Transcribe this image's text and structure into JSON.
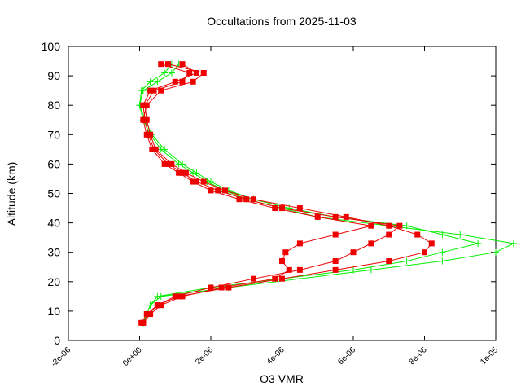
{
  "chart_data": {
    "type": "scatter",
    "title": "Occultations from 2025-11-03",
    "x_label": "O3 VMR",
    "y_label": "Altitude (km)",
    "xlim": [
      -2e-06,
      1e-05
    ],
    "xticks": [
      {
        "value": -2e-06,
        "label": "-2e-06"
      },
      {
        "value": 0,
        "label": "0e+00"
      },
      {
        "value": 2e-06,
        "label": "2e-06"
      },
      {
        "value": 4e-06,
        "label": "4e-06"
      },
      {
        "value": 6e-06,
        "label": "6e-06"
      },
      {
        "value": 8e-06,
        "label": "8e-06"
      },
      {
        "value": 1e-05,
        "label": "1e-05"
      }
    ],
    "ylim": [
      0,
      100
    ],
    "yticks": [
      0,
      10,
      20,
      30,
      40,
      50,
      60,
      70,
      80,
      90,
      100
    ],
    "series": [
      {
        "color": "#00ee00",
        "marker": "plus",
        "x": [
          1e-07,
          2e-07,
          3e-07,
          6e-07,
          2.5e-06,
          4.5e-06,
          6.5e-06,
          8.5e-06,
          1e-05,
          1.05e-05,
          9e-06,
          7e-06,
          5e-06,
          4e-06,
          3e-06,
          2.4e-06,
          1.9e-06,
          1.5e-06,
          1.1e-06,
          6e-07,
          3e-07,
          1e-07,
          0.0,
          1e-07,
          5e-07,
          9e-07,
          1.1e-06
        ],
        "values": [
          6,
          9,
          12,
          15,
          18,
          21,
          24,
          27,
          30,
          33,
          36,
          39,
          42,
          45,
          48,
          51,
          54,
          57,
          60,
          65,
          70,
          75,
          80,
          85,
          88,
          91,
          94
        ]
      },
      {
        "color": "#00ee00",
        "marker": "plus",
        "x": [
          1e-07,
          2e-07,
          3e-07,
          5e-07,
          2e-06,
          4e-06,
          6e-06,
          7.5e-06,
          8.5e-06,
          9.5e-06,
          8.5e-06,
          7.5e-06,
          5.5e-06,
          4.2e-06,
          3.2e-06,
          2.5e-06,
          2e-06,
          1.6e-06,
          1.2e-06,
          7e-07,
          3.5e-07,
          1.5e-07,
          0.0,
          5e-08,
          3e-07,
          7e-07,
          9e-07
        ],
        "values": [
          6,
          9,
          12,
          15,
          18,
          21,
          24,
          27,
          30,
          33,
          36,
          39,
          42,
          45,
          48,
          51,
          54,
          57,
          60,
          65,
          70,
          75,
          80,
          85,
          88,
          91,
          94
        ]
      },
      {
        "color": "#ee0000",
        "marker": "square",
        "x": [
          5e-08,
          2e-07,
          5e-07,
          1e-06,
          2e-06,
          3.2e-06,
          4.5e-06,
          5.5e-06,
          6e-06,
          6.5e-06,
          7e-06,
          7.3e-06,
          5.5e-06,
          4e-06,
          3e-06,
          2.2e-06,
          1.6e-06,
          1.2e-06,
          8e-07,
          4e-07,
          2.5e-07,
          1.5e-07,
          1e-07,
          3e-07,
          1e-06,
          1.6e-06,
          1.2e-06
        ],
        "values": [
          6,
          9,
          12,
          15,
          18,
          21,
          24,
          27,
          30,
          33,
          36,
          39,
          42,
          45,
          48,
          51,
          54,
          57,
          60,
          65,
          70,
          75,
          80,
          85,
          88,
          91,
          94
        ]
      },
      {
        "color": "#ee0000",
        "marker": "square",
        "x": [
          1e-07,
          3e-07,
          6e-07,
          1.2e-06,
          2.3e-06,
          3.8e-06,
          4.2e-06,
          4e-06,
          4.1e-06,
          4.5e-06,
          5.5e-06,
          6.5e-06,
          5e-06,
          3.8e-06,
          2.8e-06,
          2e-06,
          1.5e-06,
          1.1e-06,
          7e-07,
          3.5e-07,
          2e-07,
          1e-07,
          2e-07,
          6e-07,
          1.5e-06,
          1.8e-06,
          8e-07
        ],
        "values": [
          6,
          9,
          12,
          15,
          18,
          21,
          24,
          27,
          30,
          33,
          36,
          39,
          42,
          45,
          48,
          51,
          54,
          57,
          60,
          65,
          70,
          75,
          80,
          85,
          88,
          91,
          94
        ]
      },
      {
        "color": "#ee0000",
        "marker": "square",
        "x": [
          1e-07,
          2.5e-07,
          5e-07,
          1.1e-06,
          2.5e-06,
          4e-06,
          5.5e-06,
          7e-06,
          8e-06,
          8.2e-06,
          7.8e-06,
          7e-06,
          5.8e-06,
          4.5e-06,
          3.2e-06,
          2.4e-06,
          1.8e-06,
          1.3e-06,
          9e-07,
          4.5e-07,
          3e-07,
          2e-07,
          1.5e-07,
          4e-07,
          1.2e-06,
          1.4e-06,
          6e-07
        ],
        "values": [
          6,
          9,
          12,
          15,
          18,
          21,
          24,
          27,
          30,
          33,
          36,
          39,
          42,
          45,
          48,
          51,
          54,
          57,
          60,
          65,
          70,
          75,
          80,
          85,
          88,
          91,
          94
        ]
      }
    ]
  }
}
